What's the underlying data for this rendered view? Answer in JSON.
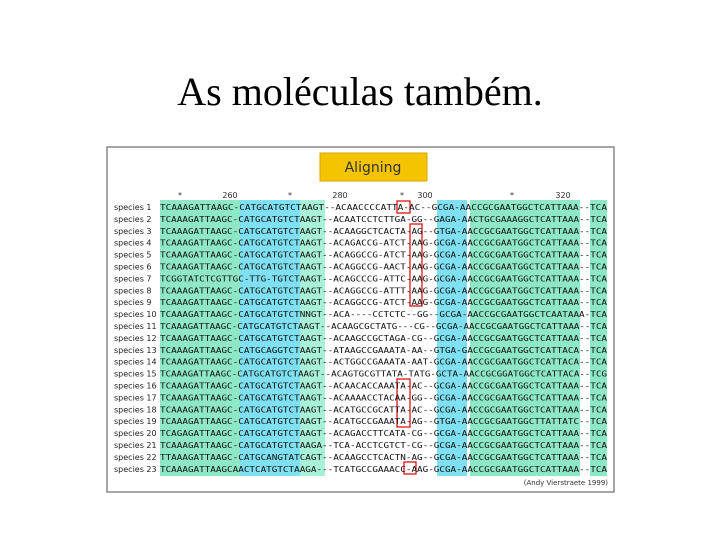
{
  "title": "As moléculas também.",
  "figure": {
    "button": "Aligning",
    "ruler": [
      "*",
      "260",
      "*",
      "280",
      "*",
      "300",
      "*",
      "320"
    ],
    "rows": [
      {
        "label": "species 1",
        "sequence": "TCAAAGATTAAGC-CATGCATGTCTAAGT--ACAACCCCATTA-AC--GCGA-AACCGCGAATGGCTCATTAAA--TCA"
      },
      {
        "label": "species 2",
        "sequence": "TCAAAGATTAAGC-CATGCATGTCTAAGT--ACAATCCTCTTGA-GG--GAGA-AACTGCGAAAGGCTCATTAAA--TCA"
      },
      {
        "label": "species 3",
        "sequence": "TCAAAGATTAAGC-CATGCATGTCTAAGT--ACAAGGCTCACTA-AG--GTGA-AACCGCGAATGGCTCATTAAA--TCA"
      },
      {
        "label": "species 4",
        "sequence": "TCAAAGATTAAGC-CATGCATGTCTAAGT--ACAGACCG-ATCT-AAG-GCGA-AACCGCGAATGGCTCATTAAA--TCA"
      },
      {
        "label": "species 5",
        "sequence": "TCAAAGATTAAGC-CATGCATGTCTAAGT--ACAGGCCG-ATCT-AAG-GCGA-AACCGCGAATGGCTCATTAAA--TCA"
      },
      {
        "label": "species 6",
        "sequence": "TCAAAGATTAAGC-CATGCATGTCTAAGT--ACAGGCCG-AACT-AAG-GCGA-AACCGCGAATGGCTCATTAAA--TCA"
      },
      {
        "label": "species 7",
        "sequence": "TCGGTATCTCGTTGC-TTG-TGTCTAAGT--ACAGCCCG-ATTC-AAG-GCGA-AACCGCGAATGGCTCATTAAA--TCA"
      },
      {
        "label": "species 8",
        "sequence": "TCAAAGATTAAGC-CATGCATGTCTAAGT--ACAGGCCG-ATTT-AAG-GCGA-AACCGCGAATGGCTCATTAAA--TCA"
      },
      {
        "label": "species 9",
        "sequence": "TCAAAGATTAAGC-CATGCATGTCTAAGT--ACAGGCCG-ATCT-AAG-GCGA-AACCGCGAATGGCTCATTAAA--TCA"
      },
      {
        "label": "species 10",
        "sequence": "TCAAAGATTAAGC-CATGCATGTCTNNGT--ACA----CCTCTC--GG--GCGA-AACCGCGAATGGCTCAATAAA-TCA"
      },
      {
        "label": "species 11",
        "sequence": "TCAAAGATTAAGC-CATGCATGTCTAAGT--ACAAGCGCTATG---CG--GCGA-AACCGCGAATGGCTCATTAAA--TCA"
      },
      {
        "label": "species 12",
        "sequence": "TCAAAGATTAAGC-CATGCATGTCTAAGT--ACAAGCCGCTAGA-CG--GCGA-AACCGCGAATGGCTCATTAAA--TCA"
      },
      {
        "label": "species 13",
        "sequence": "TCAAAGATTAAGC-CATGCAGGTCTAAGT--ATAAGCCGAAATA-AA--GTGA-GACCGCGAATGGCTCATTACA--TCA"
      },
      {
        "label": "species 14",
        "sequence": "TCAAAGATTAAGC-CATGCATGTCTAAGT--ACTGGCCGAAATA-AAT-GCGA-AACCGCGAATGGCTCATTACA--TCA"
      },
      {
        "label": "species 15",
        "sequence": "TCAAAGATTAAGC-CATGCATGTCTAAGT--ACAGTGCGTTATA-TATG-GCTA-AACCGCGGATGGCTCATTACA--TCG"
      },
      {
        "label": "species 16",
        "sequence": "TCAAAGATTAAGC-CATGCATGTCTAAGT--ACAACACCAAATA-AC--GCGA-AACCGCGAATGGCTCATTAAA--TCA"
      },
      {
        "label": "species 17",
        "sequence": "TCAAAGATTAAGC-CATGCATGTCTAAGT--ACAAAACCTACAA-GG--GCGA-AACCGCGAATGGCTCATTAAA--TCA"
      },
      {
        "label": "species 18",
        "sequence": "TCAAAGATTAAGC-CATGCATGTCTAAGT--ACATGCCGCATTA-AC--GCGA-AACCGCGAATGGCTCATTAAA--TCA"
      },
      {
        "label": "species 19",
        "sequence": "TCAAAGATTAAGC-CATGCATGTCTAAGT--ACATGCCGAAATA-AG--GTGA-AACCGCGAATGGCTTATTATC--TCA"
      },
      {
        "label": "species 20",
        "sequence": "TCAGAGATTAAGC-CATGCATGTCTAAGT--ACAGACCTTCATA-CG--GCGA-AACCGCGAATGGCTCATTAAA--TCA"
      },
      {
        "label": "species 21",
        "sequence": "TCAAAGATTAAGC-CATGCATGTCTAAGA--TCA-ACCTCGTCT-CG--GCGA-AACCGCGAATGGCTCATTAAA--TCA"
      },
      {
        "label": "species 22",
        "sequence": "TTAAAGATTAAGC-CATGCANGTATCAGT--ACAAGCCTCACTN-AG--GCGA-AACCGCGAATGGCTCATTAAA--TCA"
      },
      {
        "label": "species 23",
        "sequence": "TCAAAGATTAAGCAACTCATGTCTAAGA---TCATGCCGAAACC-AAG-GCGA-AACCGCGAATGGCTCATTAAA--TCA"
      }
    ],
    "credit": "(Andy Vierstraete 1999)"
  }
}
